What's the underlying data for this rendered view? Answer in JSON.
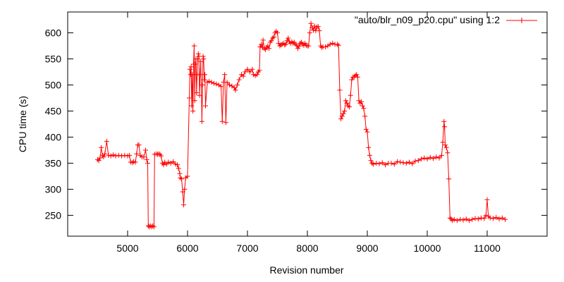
{
  "chart_data": {
    "type": "line",
    "title": "",
    "xlabel": "Revision number",
    "ylabel": "CPU time (s)",
    "xlim": [
      4000,
      12000
    ],
    "ylim": [
      210,
      640
    ],
    "xticks": [
      5000,
      6000,
      7000,
      8000,
      9000,
      10000,
      11000
    ],
    "yticks": [
      250,
      300,
      350,
      400,
      450,
      500,
      550,
      600
    ],
    "grid": false,
    "legend_position": "top-right",
    "series": [
      {
        "name": "\"auto/blr_n09_p20.cpu\" using 1:2",
        "color": "#ff0000",
        "marker": "plus",
        "points": [
          [
            4500,
            357
          ],
          [
            4520,
            355
          ],
          [
            4540,
            360
          ],
          [
            4560,
            380
          ],
          [
            4580,
            365
          ],
          [
            4600,
            362
          ],
          [
            4620,
            368
          ],
          [
            4650,
            392
          ],
          [
            4680,
            365
          ],
          [
            4720,
            364
          ],
          [
            4760,
            366
          ],
          [
            4800,
            364
          ],
          [
            4850,
            365
          ],
          [
            4900,
            364
          ],
          [
            4950,
            365
          ],
          [
            5000,
            364
          ],
          [
            5030,
            365
          ],
          [
            5050,
            352
          ],
          [
            5080,
            351
          ],
          [
            5100,
            353
          ],
          [
            5130,
            352
          ],
          [
            5150,
            368
          ],
          [
            5170,
            385
          ],
          [
            5190,
            385
          ],
          [
            5210,
            365
          ],
          [
            5240,
            362
          ],
          [
            5270,
            362
          ],
          [
            5300,
            375
          ],
          [
            5320,
            357
          ],
          [
            5335,
            350
          ],
          [
            5345,
            230
          ],
          [
            5360,
            228
          ],
          [
            5380,
            230
          ],
          [
            5400,
            228
          ],
          [
            5420,
            230
          ],
          [
            5440,
            228
          ],
          [
            5450,
            367
          ],
          [
            5480,
            368
          ],
          [
            5500,
            367
          ],
          [
            5520,
            368
          ],
          [
            5540,
            367
          ],
          [
            5560,
            364
          ],
          [
            5580,
            350
          ],
          [
            5600,
            347
          ],
          [
            5620,
            352
          ],
          [
            5650,
            348
          ],
          [
            5680,
            352
          ],
          [
            5720,
            350
          ],
          [
            5760,
            353
          ],
          [
            5800,
            348
          ],
          [
            5830,
            347
          ],
          [
            5850,
            340
          ],
          [
            5870,
            330
          ],
          [
            5880,
            322
          ],
          [
            5900,
            320
          ],
          [
            5920,
            295
          ],
          [
            5935,
            270
          ],
          [
            5950,
            300
          ],
          [
            5970,
            322
          ],
          [
            6000,
            325
          ],
          [
            6030,
            475
          ],
          [
            6040,
            530
          ],
          [
            6050,
            520
          ],
          [
            6060,
            535
          ],
          [
            6070,
            460
          ],
          [
            6080,
            520
          ],
          [
            6090,
            450
          ],
          [
            6100,
            540
          ],
          [
            6110,
            575
          ],
          [
            6120,
            470
          ],
          [
            6130,
            540
          ],
          [
            6140,
            550
          ],
          [
            6150,
            485
          ],
          [
            6160,
            520
          ],
          [
            6170,
            550
          ],
          [
            6180,
            560
          ],
          [
            6190,
            555
          ],
          [
            6200,
            480
          ],
          [
            6210,
            520
          ],
          [
            6220,
            545
          ],
          [
            6230,
            500
          ],
          [
            6240,
            430
          ],
          [
            6250,
            500
          ],
          [
            6260,
            555
          ],
          [
            6270,
            550
          ],
          [
            6280,
            510
          ],
          [
            6290,
            520
          ],
          [
            6300,
            460
          ],
          [
            6330,
            505
          ],
          [
            6360,
            507
          ],
          [
            6400,
            505
          ],
          [
            6440,
            503
          ],
          [
            6480,
            502
          ],
          [
            6520,
            500
          ],
          [
            6560,
            497
          ],
          [
            6580,
            430
          ],
          [
            6600,
            505
          ],
          [
            6620,
            520
          ],
          [
            6640,
            428
          ],
          [
            6660,
            505
          ],
          [
            6700,
            500
          ],
          [
            6740,
            498
          ],
          [
            6780,
            495
          ],
          [
            6800,
            490
          ],
          [
            6830,
            500
          ],
          [
            6860,
            510
          ],
          [
            6900,
            520
          ],
          [
            6930,
            517
          ],
          [
            6960,
            525
          ],
          [
            7000,
            530
          ],
          [
            7040,
            525
          ],
          [
            7080,
            530
          ],
          [
            7100,
            520
          ],
          [
            7130,
            518
          ],
          [
            7160,
            520
          ],
          [
            7180,
            525
          ],
          [
            7200,
            528
          ],
          [
            7210,
            573
          ],
          [
            7230,
            578
          ],
          [
            7250,
            572
          ],
          [
            7260,
            586
          ],
          [
            7280,
            570
          ],
          [
            7300,
            568
          ],
          [
            7320,
            572
          ],
          [
            7340,
            575
          ],
          [
            7360,
            570
          ],
          [
            7380,
            582
          ],
          [
            7400,
            585
          ],
          [
            7420,
            590
          ],
          [
            7440,
            592
          ],
          [
            7460,
            600
          ],
          [
            7480,
            603
          ],
          [
            7500,
            600
          ],
          [
            7520,
            580
          ],
          [
            7540,
            575
          ],
          [
            7560,
            577
          ],
          [
            7580,
            578
          ],
          [
            7600,
            580
          ],
          [
            7620,
            577
          ],
          [
            7640,
            578
          ],
          [
            7660,
            585
          ],
          [
            7680,
            590
          ],
          [
            7700,
            583
          ],
          [
            7720,
            580
          ],
          [
            7740,
            583
          ],
          [
            7760,
            580
          ],
          [
            7780,
            582
          ],
          [
            7800,
            578
          ],
          [
            7820,
            576
          ],
          [
            7840,
            570
          ],
          [
            7860,
            574
          ],
          [
            7880,
            580
          ],
          [
            7900,
            582
          ],
          [
            7920,
            578
          ],
          [
            7940,
            576
          ],
          [
            7960,
            580
          ],
          [
            7980,
            576
          ],
          [
            8000,
            575
          ],
          [
            8020,
            575
          ],
          [
            8040,
            600
          ],
          [
            8060,
            618
          ],
          [
            8080,
            610
          ],
          [
            8100,
            605
          ],
          [
            8120,
            613
          ],
          [
            8140,
            604
          ],
          [
            8160,
            611
          ],
          [
            8180,
            612
          ],
          [
            8200,
            604
          ],
          [
            8220,
            575
          ],
          [
            8240,
            572
          ],
          [
            8260,
            573
          ],
          [
            8300,
            573
          ],
          [
            8340,
            575
          ],
          [
            8380,
            578
          ],
          [
            8420,
            580
          ],
          [
            8460,
            578
          ],
          [
            8500,
            578
          ],
          [
            8520,
            576
          ],
          [
            8540,
            490
          ],
          [
            8560,
            435
          ],
          [
            8580,
            440
          ],
          [
            8600,
            445
          ],
          [
            8620,
            450
          ],
          [
            8640,
            470
          ],
          [
            8660,
            465
          ],
          [
            8680,
            460
          ],
          [
            8700,
            458
          ],
          [
            8720,
            480
          ],
          [
            8740,
            510
          ],
          [
            8760,
            515
          ],
          [
            8780,
            515
          ],
          [
            8800,
            518
          ],
          [
            8820,
            520
          ],
          [
            8840,
            515
          ],
          [
            8860,
            470
          ],
          [
            8880,
            465
          ],
          [
            8900,
            468
          ],
          [
            8920,
            460
          ],
          [
            8940,
            455
          ],
          [
            8960,
            440
          ],
          [
            8980,
            415
          ],
          [
            9000,
            410
          ],
          [
            9020,
            380
          ],
          [
            9040,
            365
          ],
          [
            9060,
            355
          ],
          [
            9080,
            350
          ],
          [
            9100,
            348
          ],
          [
            9150,
            350
          ],
          [
            9200,
            349
          ],
          [
            9250,
            351
          ],
          [
            9300,
            347
          ],
          [
            9350,
            350
          ],
          [
            9400,
            350
          ],
          [
            9450,
            348
          ],
          [
            9500,
            353
          ],
          [
            9550,
            352
          ],
          [
            9600,
            351
          ],
          [
            9650,
            350
          ],
          [
            9700,
            352
          ],
          [
            9750,
            349
          ],
          [
            9800,
            354
          ],
          [
            9850,
            355
          ],
          [
            9900,
            358
          ],
          [
            9950,
            360
          ],
          [
            10000,
            358
          ],
          [
            10050,
            361
          ],
          [
            10100,
            359
          ],
          [
            10150,
            362
          ],
          [
            10200,
            360
          ],
          [
            10240,
            365
          ],
          [
            10260,
            390
          ],
          [
            10280,
            430
          ],
          [
            10290,
            420
          ],
          [
            10300,
            385
          ],
          [
            10320,
            380
          ],
          [
            10340,
            370
          ],
          [
            10360,
            320
          ],
          [
            10380,
            245
          ],
          [
            10400,
            243
          ],
          [
            10420,
            240
          ],
          [
            10450,
            242
          ],
          [
            10500,
            240
          ],
          [
            10550,
            242
          ],
          [
            10600,
            241
          ],
          [
            10650,
            243
          ],
          [
            10700,
            240
          ],
          [
            10750,
            242
          ],
          [
            10800,
            244
          ],
          [
            10850,
            243
          ],
          [
            10900,
            245
          ],
          [
            10950,
            244
          ],
          [
            10980,
            250
          ],
          [
            11000,
            280
          ],
          [
            11020,
            248
          ],
          [
            11050,
            245
          ],
          [
            11100,
            244
          ],
          [
            11150,
            246
          ],
          [
            11200,
            243
          ],
          [
            11250,
            245
          ],
          [
            11300,
            242
          ]
        ]
      }
    ]
  }
}
